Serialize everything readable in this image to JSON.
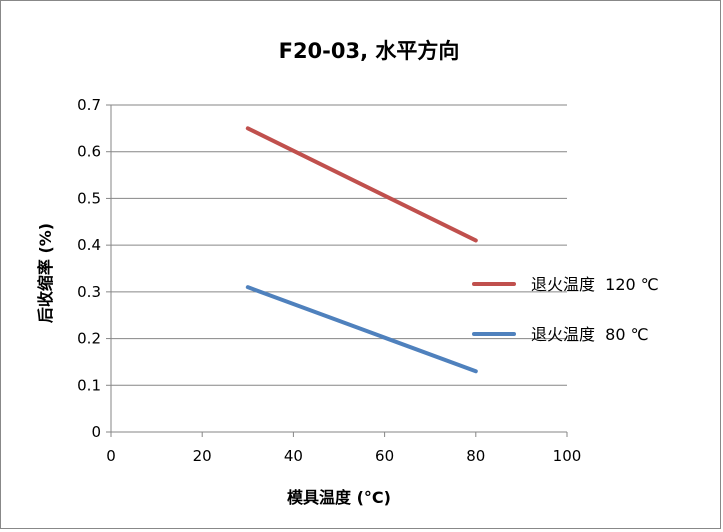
{
  "chart_data": {
    "type": "line",
    "title": "F20-03, 水平方向",
    "xlabel": "模具温度 (°C)",
    "ylabel": "后收缩率 (%)",
    "xlim": [
      0,
      100
    ],
    "ylim": [
      0,
      0.7
    ],
    "x_ticks": [
      "0",
      "20",
      "40",
      "60",
      "80",
      "100"
    ],
    "y_ticks": [
      "0",
      "0.1",
      "0.2",
      "0.3",
      "0.4",
      "0.5",
      "0.6",
      "0.7"
    ],
    "grid": "horizontal",
    "legend_position": "right",
    "series": [
      {
        "name": "退火温度  120 ℃",
        "color": "#c0504d",
        "x": [
          30,
          80
        ],
        "y": [
          0.65,
          0.41
        ]
      },
      {
        "name": "退火温度  80 ℃",
        "color": "#4f81bd",
        "x": [
          30,
          80
        ],
        "y": [
          0.31,
          0.13
        ]
      }
    ]
  }
}
